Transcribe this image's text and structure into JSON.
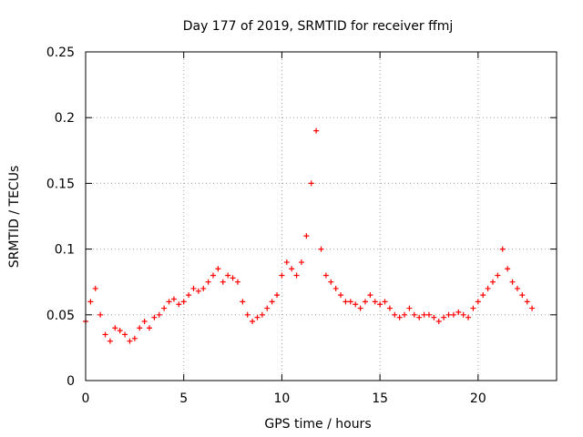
{
  "chart_data": {
    "type": "scatter",
    "title": "Day 177 of 2019, SRMTID for receiver ffmj",
    "xlabel": "GPS time / hours",
    "ylabel": "SRMTID / TECUs",
    "xlim": [
      0,
      24
    ],
    "ylim": [
      0,
      0.25
    ],
    "xticks": [
      0,
      5,
      10,
      15,
      20
    ],
    "xtick_labels": [
      "0",
      "5",
      "10",
      "15",
      "20"
    ],
    "yticks": [
      0,
      0.05,
      0.1,
      0.15,
      0.2,
      0.25
    ],
    "ytick_labels": [
      "0",
      "0.05",
      "0.1",
      "0.15",
      "0.2",
      "0.25"
    ],
    "grid": true,
    "marker": "+",
    "series": [
      {
        "name": "SRMTID",
        "color": "#ff0000",
        "x": [
          0.0,
          0.25,
          0.5,
          0.75,
          1.0,
          1.25,
          1.5,
          1.75,
          2.0,
          2.25,
          2.5,
          2.75,
          3.0,
          3.25,
          3.5,
          3.75,
          4.0,
          4.25,
          4.5,
          4.75,
          5.0,
          5.25,
          5.5,
          5.75,
          6.0,
          6.25,
          6.5,
          6.75,
          7.0,
          7.25,
          7.5,
          7.75,
          8.0,
          8.25,
          8.5,
          8.75,
          9.0,
          9.25,
          9.5,
          9.75,
          10.0,
          10.25,
          10.5,
          10.75,
          11.0,
          11.25,
          11.5,
          11.75,
          12.0,
          12.25,
          12.5,
          12.75,
          13.0,
          13.25,
          13.5,
          13.75,
          14.0,
          14.25,
          14.5,
          14.75,
          15.0,
          15.25,
          15.5,
          15.75,
          16.0,
          16.25,
          16.5,
          16.75,
          17.0,
          17.25,
          17.5,
          17.75,
          18.0,
          18.25,
          18.5,
          18.75,
          19.0,
          19.25,
          19.5,
          19.75,
          20.0,
          20.25,
          20.5,
          20.75,
          21.0,
          21.25,
          21.5,
          21.75,
          22.0,
          22.25,
          22.5,
          22.75
        ],
        "y": [
          0.045,
          0.06,
          0.07,
          0.05,
          0.035,
          0.03,
          0.04,
          0.038,
          0.035,
          0.03,
          0.032,
          0.04,
          0.045,
          0.04,
          0.048,
          0.05,
          0.055,
          0.06,
          0.062,
          0.058,
          0.06,
          0.065,
          0.07,
          0.068,
          0.07,
          0.075,
          0.08,
          0.085,
          0.075,
          0.08,
          0.078,
          0.075,
          0.06,
          0.05,
          0.045,
          0.048,
          0.05,
          0.055,
          0.06,
          0.065,
          0.08,
          0.09,
          0.085,
          0.08,
          0.09,
          0.11,
          0.15,
          0.19,
          0.1,
          0.08,
          0.075,
          0.07,
          0.065,
          0.06,
          0.06,
          0.058,
          0.055,
          0.06,
          0.065,
          0.06,
          0.058,
          0.06,
          0.055,
          0.05,
          0.048,
          0.05,
          0.055,
          0.05,
          0.048,
          0.05,
          0.05,
          0.048,
          0.045,
          0.048,
          0.05,
          0.05,
          0.052,
          0.05,
          0.048,
          0.055,
          0.06,
          0.065,
          0.07,
          0.075,
          0.08,
          0.1,
          0.085,
          0.075,
          0.07,
          0.065,
          0.06,
          0.055
        ]
      }
    ]
  }
}
